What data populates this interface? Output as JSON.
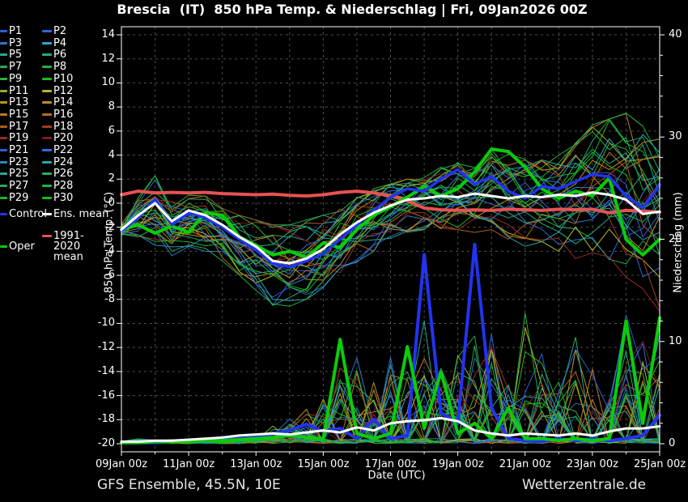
{
  "title": "Brescia  (IT)  850 hPa Temp. & Niederschlag | Fri, 09Jan2026 00Z",
  "footer": {
    "left": "GFS Ensemble, 45.5N, 10E",
    "right": "Wetterzentrale.de"
  },
  "axes": {
    "x": {
      "title": "Date (UTC)",
      "tick_labels": [
        "09Jan 00z",
        "11Jan 00z",
        "13Jan 00z",
        "15Jan 00z",
        "17Jan 00z",
        "19Jan 00z",
        "21Jan 00z",
        "23Jan 00z",
        "25Jan 00z"
      ],
      "days_total": 16,
      "gridline_every_days": 1,
      "label_every_days": 2
    },
    "y_left": {
      "title": "850 hPa Temp. (°C)",
      "min": -20,
      "max": 14,
      "tick_step": 2
    },
    "y_right": {
      "title": "Niederschlag (mm)",
      "min": 0,
      "max": 40,
      "label_step": 10,
      "minor_step": 2
    }
  },
  "colors": {
    "background": "#000000",
    "plot_border": "#ffffff",
    "gridline": "#4d4d4d",
    "text": "#ffffff",
    "footer_text": "#e6e6e6",
    "control": "#2233ee",
    "ens_mean": "#ffffff",
    "clim_mean": "#e65252",
    "oper": "#0acc0a"
  },
  "legend": {
    "members": [
      {
        "label": "P1",
        "color": "#2e5fd0"
      },
      {
        "label": "P2",
        "color": "#2e68d4"
      },
      {
        "label": "P3",
        "color": "#2d78cc"
      },
      {
        "label": "P4",
        "color": "#29a6c8"
      },
      {
        "label": "P5",
        "color": "#22aa9a"
      },
      {
        "label": "P6",
        "color": "#22ab78"
      },
      {
        "label": "P7",
        "color": "#26a958"
      },
      {
        "label": "P8",
        "color": "#24ae44"
      },
      {
        "label": "P9",
        "color": "#2db437"
      },
      {
        "label": "P10",
        "color": "#18bd1c"
      },
      {
        "label": "P11",
        "color": "#8fb02a"
      },
      {
        "label": "P12",
        "color": "#b8b822"
      },
      {
        "label": "P13",
        "color": "#b49a1a"
      },
      {
        "label": "P14",
        "color": "#bf8b1e"
      },
      {
        "label": "P15",
        "color": "#bf7d22"
      },
      {
        "label": "P16",
        "color": "#ba6d1e"
      },
      {
        "label": "P17",
        "color": "#ae5c24"
      },
      {
        "label": "P18",
        "color": "#a43c24"
      },
      {
        "label": "P19",
        "color": "#982c28"
      },
      {
        "label": "P20",
        "color": "#7e1c18"
      },
      {
        "label": "P21",
        "color": "#2e5fd0"
      },
      {
        "label": "P22",
        "color": "#3269dc"
      },
      {
        "label": "P23",
        "color": "#2d88ca"
      },
      {
        "label": "P24",
        "color": "#28a5ae"
      },
      {
        "label": "P25",
        "color": "#23ab94"
      },
      {
        "label": "P26",
        "color": "#25ad6e"
      },
      {
        "label": "P27",
        "color": "#27a952"
      },
      {
        "label": "P28",
        "color": "#23b13e"
      },
      {
        "label": "P29",
        "color": "#20b42c"
      },
      {
        "label": "P30",
        "color": "#14be18"
      }
    ],
    "special": [
      {
        "label": "Control",
        "color": "#2233ee"
      },
      {
        "label": "Ens. mean",
        "color": "#ffffff"
      },
      {
        "label": "1991-2020 mean",
        "color": "#e65252"
      },
      {
        "label": "Oper",
        "color": "#0acc0a"
      }
    ]
  },
  "chart_data": {
    "type": "line",
    "title": "Brescia (IT) 850 hPa Temp. & Niederschlag | Fri, 09Jan2026 00Z",
    "xlabel": "Date (UTC)",
    "x_start": "09Jan 00z",
    "x_end": "25Jan 00z",
    "x_step_days": 0.5,
    "x_tick_labels": [
      "09Jan 00z",
      "11Jan 00z",
      "13Jan 00z",
      "15Jan 00z",
      "17Jan 00z",
      "19Jan 00z",
      "21Jan 00z",
      "23Jan 00z",
      "25Jan 00z"
    ],
    "ylim_left": [
      -20,
      14
    ],
    "ylabel_left": "850 hPa Temp. (°C)",
    "ylim_right": [
      0,
      40
    ],
    "ylabel_right": "Niederschlag (mm)",
    "grid": true,
    "legend_position": "left",
    "series": [
      {
        "name": "Ens. mean temp (°C)",
        "color": "#ffffff",
        "width": 3,
        "axis": "left",
        "values": [
          -2.2,
          -1.0,
          0.0,
          -1.5,
          -0.6,
          -1.0,
          -1.8,
          -2.8,
          -3.6,
          -4.8,
          -5.0,
          -4.6,
          -3.8,
          -2.6,
          -1.6,
          -0.8,
          -0.2,
          0.3,
          0.4,
          0.6,
          0.5,
          0.8,
          0.6,
          0.4,
          0.6,
          0.5,
          0.7,
          0.6,
          0.9,
          0.7,
          0.3,
          -0.9,
          -0.7
        ]
      },
      {
        "name": "Control temp (°C)",
        "color": "#2233ee",
        "width": 3,
        "axis": "left",
        "values": [
          -2.3,
          -1.2,
          0.3,
          -1.8,
          -0.8,
          -1.2,
          -2.0,
          -3.0,
          -3.9,
          -5.0,
          -5.3,
          -4.8,
          -4.2,
          -3.0,
          -1.8,
          -0.6,
          0.5,
          1.2,
          1.0,
          2.0,
          2.8,
          1.6,
          2.2,
          1.0,
          0.4,
          1.4,
          1.2,
          1.8,
          2.4,
          2.2,
          0.6,
          -0.4,
          1.5
        ]
      },
      {
        "name": "Oper temp (°C)",
        "color": "#0acc0a",
        "width": 4,
        "axis": "left",
        "values": [
          -2.2,
          -1.8,
          -2.5,
          -1.9,
          -2.4,
          -0.8,
          -1.0,
          -2.8,
          -3.5,
          -4.3,
          -4.0,
          -4.5,
          -3.3,
          -3.7,
          -2.2,
          -1.0,
          -0.3,
          0.5,
          1.4,
          0.6,
          1.2,
          2.6,
          4.5,
          4.3,
          3.0,
          1.2,
          0.4,
          1.0,
          0.6,
          2.1,
          -3.0,
          -4.3,
          -3.0
        ]
      },
      {
        "name": "1991-2020 mean temp (°C)",
        "color": "#e65252",
        "width": 4,
        "axis": "left",
        "values": [
          0.7,
          1.0,
          0.85,
          0.9,
          0.85,
          0.9,
          0.8,
          0.75,
          0.7,
          0.75,
          0.65,
          0.6,
          0.7,
          0.9,
          1.0,
          0.85,
          0.6,
          0.2,
          -0.4,
          -0.55,
          -0.6,
          -0.55,
          -0.6,
          -0.5,
          -0.55,
          -0.6,
          -0.5,
          -0.55,
          -0.5,
          -0.8,
          -0.6,
          -0.65,
          -0.75
        ]
      },
      {
        "name": "Ens. mean precip (mm)",
        "color": "#ffffff",
        "width": 3,
        "axis": "right",
        "values": [
          0.2,
          0.2,
          0.3,
          0.3,
          0.4,
          0.5,
          0.6,
          0.8,
          0.9,
          1.0,
          0.9,
          1.1,
          1.3,
          1.1,
          1.6,
          1.3,
          2.0,
          2.2,
          2.3,
          2.5,
          2.2,
          1.3,
          1.0,
          0.8,
          1.0,
          0.9,
          0.8,
          1.0,
          0.8,
          1.2,
          1.5,
          1.5,
          1.7
        ]
      },
      {
        "name": "Control precip (mm)",
        "color": "#2233ee",
        "width": 4,
        "axis": "right",
        "values": [
          0.1,
          0.1,
          0.1,
          0.2,
          0.2,
          0.3,
          0.4,
          0.5,
          0.6,
          1.0,
          1.3,
          1.9,
          1.2,
          1.5,
          0.5,
          2.4,
          0.5,
          0.8,
          18.5,
          3.0,
          2.0,
          19.5,
          3.5,
          0.5,
          0.3,
          0.2,
          0.5,
          0.3,
          0.5,
          0.3,
          0.5,
          0.8,
          2.8
        ]
      },
      {
        "name": "Oper precip (mm)",
        "color": "#0acc0a",
        "width": 4,
        "axis": "right",
        "values": [
          0.1,
          0.1,
          0.2,
          0.2,
          0.2,
          0.3,
          0.3,
          0.4,
          0.5,
          0.6,
          0.8,
          0.6,
          0.5,
          10.2,
          1.0,
          0.5,
          1.0,
          9.5,
          1.5,
          7.0,
          1.0,
          2.0,
          0.5,
          3.5,
          0.5,
          0.5,
          0.3,
          0.5,
          0.3,
          0.5,
          12.0,
          2.0,
          12.3
        ]
      }
    ],
    "ensemble": {
      "member_count": 30,
      "colors": [
        "#2e5fd0",
        "#2e68d4",
        "#2d78cc",
        "#29a6c8",
        "#22aa9a",
        "#22ab78",
        "#26a958",
        "#24ae44",
        "#2db437",
        "#18bd1c",
        "#8fb02a",
        "#b8b822",
        "#b49a1a",
        "#bf8b1e",
        "#bf7d22",
        "#ba6d1e",
        "#ae5c24",
        "#a43c24",
        "#982c28",
        "#7e1c18",
        "#2e5fd0",
        "#3269dc",
        "#2d88ca",
        "#28a5ae",
        "#23ab94",
        "#25ad6e",
        "#27a952",
        "#23b13e",
        "#20b42c",
        "#14be18"
      ],
      "temp_envelope_min": [
        -2.8,
        -3.3,
        -3.5,
        -4.5,
        -3.6,
        -4.0,
        -5.0,
        -6.3,
        -7.5,
        -8.5,
        -8.7,
        -8.0,
        -7.0,
        -6.0,
        -5.0,
        -4.0,
        -3.0,
        -2.6,
        -2.2,
        -2.6,
        -2.2,
        -2.6,
        -2.2,
        -3.0,
        -3.6,
        -3.2,
        -4.0,
        -4.6,
        -5.0,
        -6.0,
        -7.0,
        -8.0,
        -9.0
      ],
      "temp_envelope_max": [
        -1.7,
        1.0,
        2.5,
        0.5,
        1.0,
        0.6,
        -0.4,
        -1.0,
        -1.4,
        -1.8,
        -1.8,
        -1.4,
        -1.0,
        -0.4,
        0.5,
        1.2,
        1.6,
        2.0,
        2.6,
        3.0,
        3.4,
        3.0,
        4.5,
        4.2,
        4.0,
        3.6,
        4.0,
        5.0,
        6.5,
        7.0,
        7.5,
        6.6,
        5.6
      ],
      "precip_spike_max": [
        0.3,
        0.6,
        0.4,
        0.4,
        0.3,
        0.3,
        0.3,
        0.4,
        1.0,
        2.5,
        3.2,
        4.0,
        6.0,
        10.5,
        10.0,
        8.0,
        12.0,
        11.0,
        13.0,
        12.0,
        11.0,
        13.0,
        12.0,
        10.0,
        14.0,
        11.0,
        10.0,
        12.0,
        11.0,
        10.0,
        13.0,
        12.0,
        14.0
      ]
    }
  }
}
